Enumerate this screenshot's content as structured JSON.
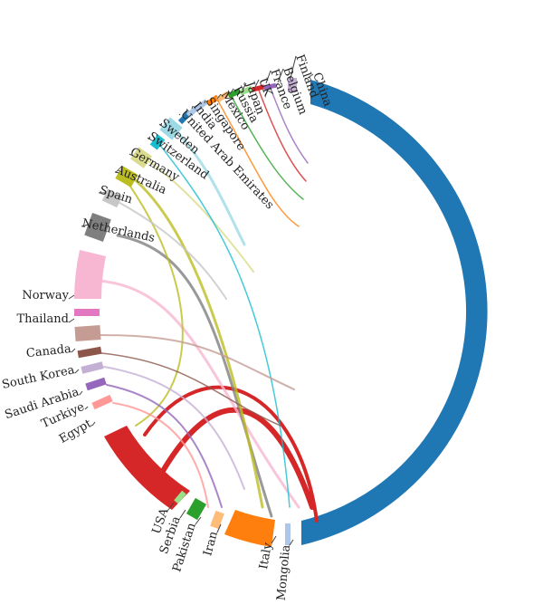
{
  "chart_data": {
    "type": "chord",
    "title": "",
    "nodes": [
      {
        "name": "China",
        "color": "#1f77b4"
      },
      {
        "name": "Finland",
        "color": "#c5b0d5"
      },
      {
        "name": "Belgium",
        "color": "#9467bd"
      },
      {
        "name": "France",
        "color": "#d62728"
      },
      {
        "name": "UK",
        "color": "#98df8a"
      },
      {
        "name": "Japan",
        "color": "#2ca02c"
      },
      {
        "name": "Russia",
        "color": "#ffbb78"
      },
      {
        "name": "Mexico",
        "color": "#ff7f0e"
      },
      {
        "name": "Singapore",
        "color": "#aec7e8"
      },
      {
        "name": "India",
        "color": "#1f77b4"
      },
      {
        "name": "United Arab Emirates",
        "color": "#17becf"
      },
      {
        "name": "Sweden",
        "color": "#9edae5"
      },
      {
        "name": "Switzerland",
        "color": "#17becf"
      },
      {
        "name": "Germany",
        "color": "#dbdb8d"
      },
      {
        "name": "Australia",
        "color": "#bcbd22"
      },
      {
        "name": "Spain",
        "color": "#c7c7c7"
      },
      {
        "name": "Netherlands",
        "color": "#7f7f7f"
      },
      {
        "name": "Norway",
        "color": "#f7b6d2"
      },
      {
        "name": "Thailand",
        "color": "#e377c2"
      },
      {
        "name": "Canada",
        "color": "#c49c94"
      },
      {
        "name": "South Korea",
        "color": "#8c564b"
      },
      {
        "name": "Saudi Arabia",
        "color": "#c5b0d5"
      },
      {
        "name": "Turkiye",
        "color": "#9467bd"
      },
      {
        "name": "Egypt",
        "color": "#ff9896"
      },
      {
        "name": "USA",
        "color": "#d62728"
      },
      {
        "name": "Serbia",
        "color": "#98df8a"
      },
      {
        "name": "Pakistan",
        "color": "#2ca02c"
      },
      {
        "name": "Iran",
        "color": "#ffbb78"
      },
      {
        "name": "Italy",
        "color": "#ff7f0e"
      },
      {
        "name": "Mongolia",
        "color": "#aec7e8"
      }
    ]
  }
}
